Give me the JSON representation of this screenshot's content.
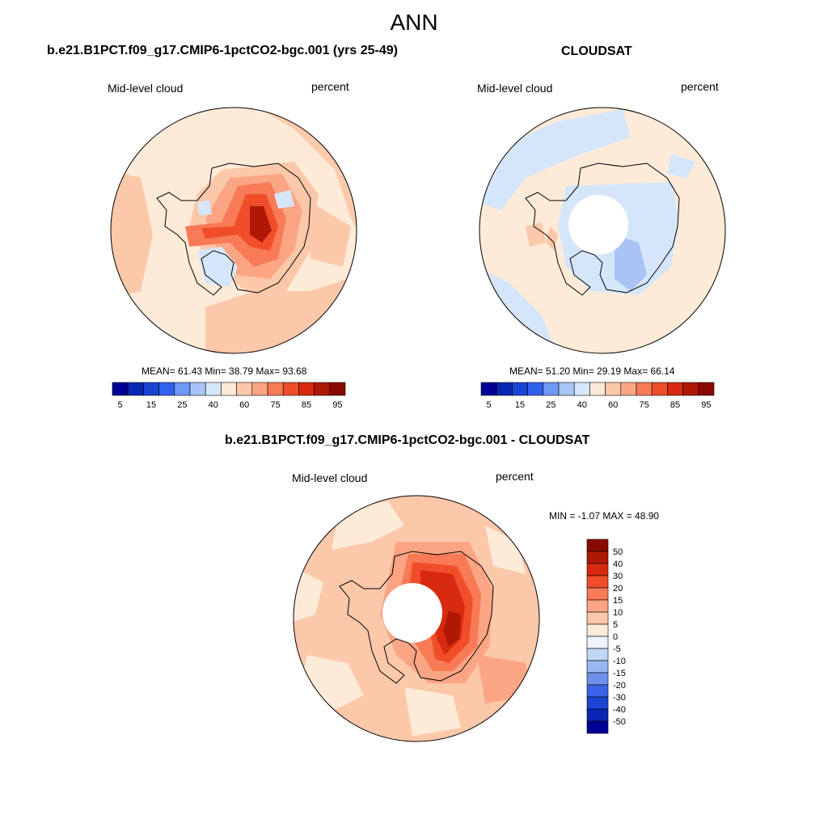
{
  "figure": {
    "title": "ANN"
  },
  "panels": [
    {
      "title": "b.e21.B1PCT.f09_g17.CMIP6-1pctCO2-bgc.001 (yrs 25-49)",
      "left_label": "Mid-level cloud",
      "right_label": "percent",
      "stats": "MEAN=  61.43  Min=  38.79  Max=  93.68",
      "has_pole_hole": false
    },
    {
      "title": "CLOUDSAT",
      "left_label": "Mid-level cloud",
      "right_label": "percent",
      "stats": "MEAN=  51.20  Min=  29.19  Max=  66.14",
      "has_pole_hole": true
    },
    {
      "title": "b.e21.B1PCT.f09_g17.CMIP6-1pctCO2-bgc.001 - CLOUDSAT",
      "left_label": "Mid-level cloud",
      "right_label": "percent",
      "stats": "MIN =  -1.07 MAX =  48.90",
      "has_pole_hole": true
    }
  ],
  "colorbar_abs": {
    "colors": [
      "#000096",
      "#0a26b4",
      "#1a44d4",
      "#3060ee",
      "#6e98f4",
      "#a8c4f6",
      "#d6e6fa",
      "#fdebd8",
      "#fcc8aa",
      "#fba584",
      "#f87a56",
      "#f04e2a",
      "#d82a10",
      "#b01806",
      "#8a0a02"
    ],
    "tick_labels": [
      "5",
      "15",
      "25",
      "40",
      "60",
      "75",
      "85",
      "95"
    ],
    "tick_after_box": [
      1,
      3,
      5,
      7,
      9,
      11,
      13,
      15
    ]
  },
  "colorbar_diff": {
    "colors": [
      "#8a0a02",
      "#b01806",
      "#d82a10",
      "#f04e2a",
      "#f87a56",
      "#fba584",
      "#fcc8aa",
      "#fdebd8",
      "#eef2fa",
      "#c4d6f6",
      "#98b6f2",
      "#6e90ec",
      "#3c64e6",
      "#1a44d4",
      "#0a26b4",
      "#000096"
    ],
    "tick_labels": [
      "50",
      "40",
      "30",
      "20",
      "15",
      "10",
      "5",
      "0",
      "-5",
      "-10",
      "-15",
      "-20",
      "-30",
      "-40",
      "-50"
    ]
  }
}
